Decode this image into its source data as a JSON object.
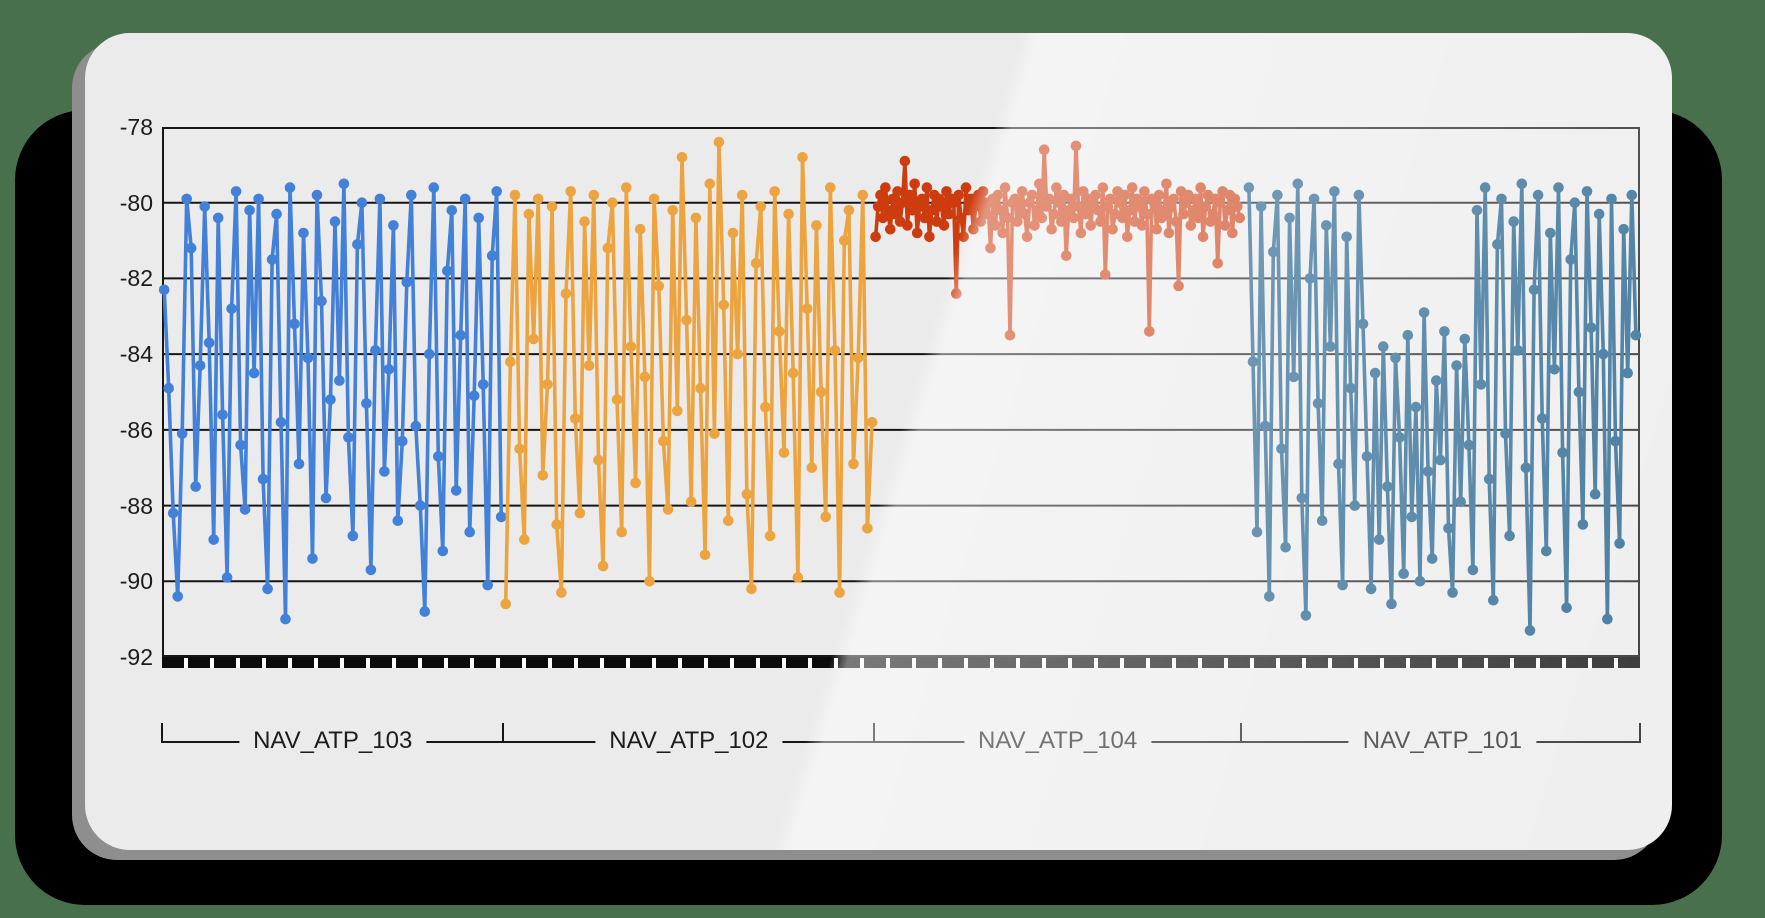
{
  "scene": {
    "background_color": "#48704c",
    "shadow_color": "#000000",
    "card_color": "#ebebeb",
    "card_rim_color": "#8e8e8e",
    "axis_color": "#161616",
    "text_color": "#1c1c1c"
  },
  "chart_data": {
    "type": "line",
    "title": "",
    "xlabel": "",
    "ylabel": "",
    "ylim": [
      -92,
      -78
    ],
    "grid": true,
    "legend_position": "none",
    "marker": "circle",
    "y_ticks": [
      "-78",
      "-80",
      "-82",
      "-84",
      "-86",
      "-88",
      "-90",
      "-92"
    ],
    "y_tick_values": [
      -78,
      -80,
      -82,
      -84,
      -86,
      -88,
      -90,
      -92
    ],
    "x_axis_style": "ruler-band",
    "groups": [
      {
        "label": "NAV_ATP_103",
        "color": "#4380d8",
        "span": [
          0.0,
          0.231
        ],
        "values": [
          -82.3,
          -84.9,
          -88.2,
          -90.4,
          -86.1,
          -79.9,
          -81.2,
          -87.5,
          -84.3,
          -80.1,
          -83.7,
          -88.9,
          -80.4,
          -85.6,
          -89.9,
          -82.8,
          -79.7,
          -86.4,
          -88.1,
          -80.2,
          -84.5,
          -79.9,
          -87.3,
          -90.2,
          -81.5,
          -80.3,
          -85.8,
          -91.0,
          -79.6,
          -83.2,
          -86.9,
          -80.8,
          -84.1,
          -89.4,
          -79.8,
          -82.6,
          -87.8,
          -85.2,
          -80.5,
          -84.7,
          -79.5,
          -86.2,
          -88.8,
          -81.1,
          -80.0,
          -85.3,
          -89.7,
          -83.9,
          -79.9,
          -87.1,
          -84.4,
          -80.6,
          -88.4,
          -86.3,
          -82.1,
          -79.8,
          -85.9,
          -88.0,
          -90.8,
          -84.0,
          -79.6,
          -86.7,
          -89.2,
          -81.8,
          -80.2,
          -87.6,
          -83.5,
          -79.9,
          -88.7,
          -85.1,
          -80.4,
          -84.8,
          -90.1,
          -81.4,
          -79.7,
          -88.3
        ]
      },
      {
        "label": "NAV_ATP_102",
        "color": "#eca440",
        "span": [
          0.231,
          0.482
        ],
        "values": [
          -90.6,
          -84.2,
          -79.8,
          -86.5,
          -88.9,
          -80.3,
          -83.6,
          -79.9,
          -87.2,
          -84.8,
          -80.1,
          -88.5,
          -90.3,
          -82.4,
          -79.7,
          -85.7,
          -88.2,
          -80.5,
          -84.3,
          -79.8,
          -86.8,
          -89.6,
          -81.2,
          -80.0,
          -85.2,
          -88.7,
          -79.6,
          -83.8,
          -87.4,
          -80.7,
          -84.6,
          -90.0,
          -79.9,
          -82.2,
          -86.3,
          -88.1,
          -80.2,
          -85.5,
          -78.8,
          -83.1,
          -87.9,
          -80.4,
          -84.9,
          -89.3,
          -79.5,
          -86.1,
          -78.4,
          -82.7,
          -88.4,
          -80.8,
          -84.0,
          -79.8,
          -87.7,
          -90.2,
          -81.6,
          -80.1,
          -85.4,
          -88.8,
          -79.7,
          -83.4,
          -86.6,
          -80.3,
          -84.5,
          -89.9,
          -78.8,
          -82.8,
          -87.0,
          -80.6,
          -85.0,
          -88.3,
          -79.6,
          -83.9,
          -90.3,
          -81.0,
          -80.2,
          -86.9,
          -84.1,
          -79.8,
          -88.6,
          -85.8
        ]
      },
      {
        "label": "NAV_ATP_104",
        "color": "#cd3c0f",
        "span": [
          0.482,
          0.73
        ],
        "values": [
          -80.9,
          -80.1,
          -79.8,
          -80.4,
          -79.6,
          -80.2,
          -80.7,
          -79.9,
          -80.3,
          -79.7,
          -80.5,
          -80.0,
          -78.9,
          -80.6,
          -79.8,
          -80.2,
          -79.5,
          -80.8,
          -80.1,
          -79.9,
          -80.4,
          -79.6,
          -80.9,
          -80.2,
          -79.8,
          -80.5,
          -79.9,
          -80.1,
          -80.6,
          -79.7,
          -80.3,
          -79.9,
          -80.0,
          -82.4,
          -79.8,
          -80.4,
          -80.9,
          -79.6,
          -80.2,
          -79.9,
          -80.7,
          -80.1,
          -79.8,
          -80.5,
          -79.7,
          -80.3,
          -80.0,
          -81.2,
          -79.9,
          -80.6,
          -79.8,
          -80.2,
          -80.8,
          -79.6,
          -80.4,
          -83.5,
          -80.0,
          -79.9,
          -80.5,
          -80.1,
          -79.7,
          -80.3,
          -80.9,
          -80.0,
          -79.8,
          -80.6,
          -80.2,
          -79.5,
          -80.4,
          -78.6,
          -80.1,
          -79.9,
          -80.7,
          -80.3,
          -79.6,
          -80.0,
          -80.5,
          -79.8,
          -81.4,
          -80.2,
          -79.9,
          -80.4,
          -78.5,
          -80.1,
          -80.8,
          -79.7,
          -80.3,
          -79.9,
          -80.6,
          -80.0,
          -79.8,
          -80.2,
          -80.5,
          -79.6,
          -81.9,
          -80.1,
          -79.9,
          -80.7,
          -80.3,
          -79.7,
          -80.0,
          -80.4,
          -79.8,
          -80.9,
          -80.2,
          -79.6,
          -80.5,
          -79.9,
          -80.1,
          -80.6,
          -79.7,
          -80.3,
          -83.4,
          -79.9,
          -80.0,
          -80.7,
          -79.8,
          -80.4,
          -80.2,
          -79.5,
          -80.8,
          -80.1,
          -79.9,
          -80.5,
          -82.2,
          -79.7,
          -80.3,
          -80.0,
          -79.8,
          -80.6,
          -80.2,
          -79.9,
          -80.4,
          -79.6,
          -80.9,
          -80.1,
          -79.8,
          -80.5,
          -80.3,
          -79.9,
          -81.6,
          -80.0,
          -79.7,
          -80.6,
          -80.2,
          -79.8,
          -80.8,
          -79.9,
          -80.1,
          -80.4
        ]
      },
      {
        "label": "NAV_ATP_101",
        "color": "#1c5d8a",
        "span": [
          0.734,
          0.9986
        ],
        "values": [
          -79.6,
          -84.2,
          -88.7,
          -80.1,
          -85.9,
          -90.4,
          -81.3,
          -79.8,
          -86.5,
          -89.1,
          -80.4,
          -84.6,
          -79.5,
          -87.8,
          -90.9,
          -82.0,
          -79.9,
          -85.3,
          -88.4,
          -80.6,
          -83.8,
          -79.7,
          -86.9,
          -90.1,
          -80.9,
          -84.9,
          -88.0,
          -79.8,
          -83.2,
          -86.7,
          -90.2,
          -84.5,
          -88.9,
          -83.8,
          -87.5,
          -90.6,
          -84.1,
          -86.2,
          -89.8,
          -83.5,
          -88.3,
          -85.4,
          -90.0,
          -82.9,
          -87.1,
          -89.4,
          -84.7,
          -86.8,
          -83.4,
          -88.6,
          -90.3,
          -84.3,
          -87.9,
          -83.6,
          -86.4,
          -89.7,
          -80.2,
          -84.8,
          -79.6,
          -87.3,
          -90.5,
          -81.1,
          -79.9,
          -86.1,
          -88.8,
          -80.5,
          -83.9,
          -79.5,
          -87.0,
          -91.3,
          -82.3,
          -79.8,
          -85.7,
          -89.2,
          -80.8,
          -84.4,
          -79.6,
          -86.6,
          -90.7,
          -81.5,
          -80.0,
          -85.0,
          -88.5,
          -79.7,
          -83.3,
          -87.7,
          -80.3,
          -84.0,
          -91.0,
          -79.9,
          -86.3,
          -89.0,
          -80.7,
          -84.5,
          -79.8,
          -83.5
        ]
      }
    ]
  }
}
